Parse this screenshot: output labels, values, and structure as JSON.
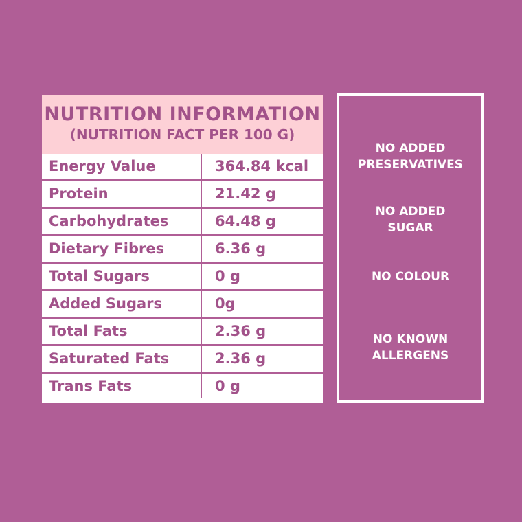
{
  "nutrition": {
    "title": "NUTRITION INFORMATION",
    "subtitle": "(NUTRITION FACT PER 100 G)",
    "rows": [
      {
        "name": "Energy Value",
        "value": "364.84 kcal"
      },
      {
        "name": "Protein",
        "value": "21.42 g"
      },
      {
        "name": "Carbohydrates",
        "value": "64.48 g"
      },
      {
        "name": "Dietary Fibres",
        "value": "6.36 g"
      },
      {
        "name": "Total Sugars",
        "value": "0 g"
      },
      {
        "name": "Added Sugars",
        "value": "0g"
      },
      {
        "name": "Total Fats",
        "value": "2.36 g"
      },
      {
        "name": "Saturated Fats",
        "value": "2.36 g"
      },
      {
        "name": "Trans Fats",
        "value": "0 g"
      }
    ]
  },
  "claims": [
    "NO ADDED\nPRESERVATIVES",
    "NO ADDED\nSUGAR",
    "NO COLOUR",
    "NO KNOWN\nALLERGENS"
  ],
  "colors": {
    "background": "#b05e96",
    "header_bg": "#fdd0d6",
    "text": "#a2528a",
    "panel_bg": "#ffffff"
  }
}
